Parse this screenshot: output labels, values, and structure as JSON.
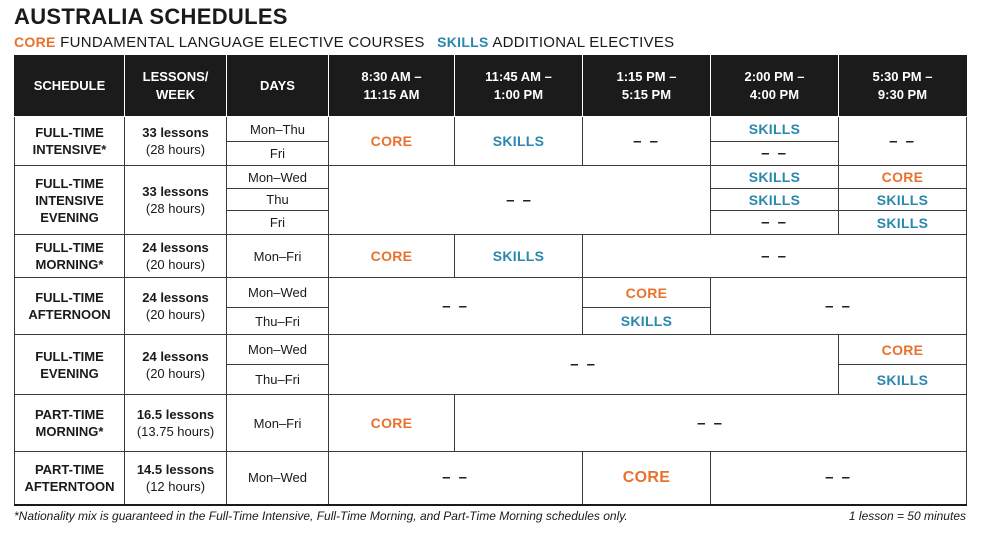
{
  "title": "AUSTRALIA SCHEDULES",
  "legend": {
    "core_label": "CORE",
    "core_desc": " FUNDAMENTAL LANGUAGE ELECTIVE COURSES",
    "skills_label": "SKILLS",
    "skills_desc": " ADDITIONAL ELECTIVES"
  },
  "headers": {
    "schedule": "SCHEDULE",
    "lessons_1": "LESSONS/",
    "lessons_2": "WEEK",
    "days": "DAYS",
    "t1_a": "8:30 AM –",
    "t1_b": "11:15 AM",
    "t2_a": "11:45 AM –",
    "t2_b": "1:00 PM",
    "t3_a": "1:15 PM –",
    "t3_b": "5:15 PM",
    "t4_a": "2:00 PM –",
    "t4_b": "4:00 PM",
    "t5_a": "5:30 PM –",
    "t5_b": "9:30 PM"
  },
  "tokens": {
    "core": "CORE",
    "skills": "SKILLS",
    "dash": "– –"
  },
  "rows": {
    "fti": {
      "name_1": "FULL-TIME",
      "name_2": "INTENSIVE*",
      "lessons": "33 lessons",
      "hours": "(28 hours)",
      "day_1": "Mon–Thu",
      "day_2": "Fri"
    },
    "ftie": {
      "name_1": "FULL-TIME",
      "name_2": "INTENSIVE",
      "name_3": "EVENING",
      "lessons": "33 lessons",
      "hours": "(28 hours)",
      "day_1": "Mon–Wed",
      "day_2": "Thu",
      "day_3": "Fri"
    },
    "ftm": {
      "name_1": "FULL-TIME",
      "name_2": "MORNING*",
      "lessons": "24 lessons",
      "hours": "(20 hours)",
      "day_1": "Mon–Fri"
    },
    "fta": {
      "name_1": "FULL-TIME",
      "name_2": "AFTERNOON",
      "lessons": "24 lessons",
      "hours": "(20 hours)",
      "day_1": "Mon–Wed",
      "day_2": "Thu–Fri"
    },
    "fte": {
      "name_1": "FULL-TIME",
      "name_2": "EVENING",
      "lessons": "24 lessons",
      "hours": "(20 hours)",
      "day_1": "Mon–Wed",
      "day_2": "Thu–Fri"
    },
    "ptm": {
      "name_1": "PART-TIME",
      "name_2": "MORNING*",
      "lessons": "16.5 lessons",
      "hours": "(13.75 hours)",
      "day_1": "Mon–Fri"
    },
    "pta": {
      "name_1": "PART-TIME",
      "name_2": "AFTERNTOON",
      "lessons": "14.5 lessons",
      "hours": "(12 hours)",
      "day_1": "Mon–Wed"
    }
  },
  "footnote": "*Nationality mix is guaranteed in the Full-Time Intensive, Full-Time Morning, and Part-Time Morning schedules only.",
  "lesson_note": "1 lesson = 50 minutes",
  "colors": {
    "core": "#e8722c",
    "skills": "#2a87ae",
    "header_bg": "#1b1b1b"
  }
}
